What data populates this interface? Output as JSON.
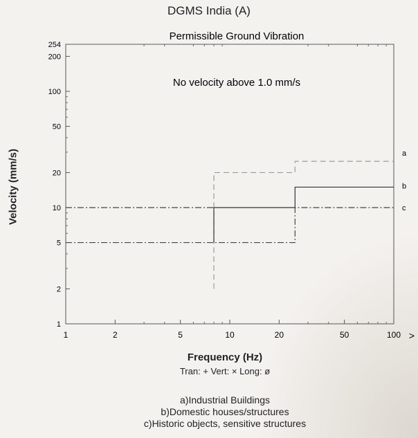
{
  "header": {
    "title": "DGMS India (A)"
  },
  "chart_data": {
    "type": "line",
    "title": "Permissible Ground Vibration",
    "annotation": "No velocity above 1.0 mm/s",
    "xlabel": "Frequency (Hz)",
    "ylabel": "Velocity (mm/s)",
    "xscale": "log",
    "yscale": "log",
    "xlim": [
      1,
      100
    ],
    "ylim": [
      1,
      254
    ],
    "x_ticks": [
      1,
      2,
      5,
      10,
      20,
      50,
      100
    ],
    "x_tick_labels": [
      "1",
      "2",
      "5",
      "10",
      "20",
      "50",
      "100"
    ],
    "x_arrow": ">",
    "y_ticks": [
      1,
      2,
      5,
      10,
      20,
      50,
      100,
      200,
      254
    ],
    "y_tick_labels": [
      "1",
      "2",
      "5",
      "10",
      "20",
      "50",
      "100",
      "200",
      "254"
    ],
    "series": [
      {
        "name": "a",
        "style": "long-dash",
        "color": "#9a9a9a",
        "x": [
          8,
          8,
          25,
          25,
          100
        ],
        "y": [
          2,
          20,
          20,
          25,
          25
        ]
      },
      {
        "name": "b",
        "style": "solid",
        "color": "#333333",
        "x": [
          8,
          8,
          25,
          25,
          100
        ],
        "y": [
          5,
          10,
          10,
          15,
          15
        ]
      },
      {
        "name": "c",
        "style": "dash-dot",
        "color": "#444444",
        "x": [
          1,
          8,
          8,
          25,
          25,
          100
        ],
        "y": [
          5,
          5,
          5,
          5,
          10,
          10
        ]
      },
      {
        "name": "",
        "style": "dash-dot",
        "color": "#444444",
        "x": [
          1,
          8
        ],
        "y": [
          10,
          10
        ]
      }
    ],
    "series_end_labels": [
      "a",
      "b",
      "c"
    ],
    "marker_line": "Tran: +  Vert: ×  Long: ø",
    "legend": [
      "a)Industrial Buildings",
      "b)Domestic houses/structures",
      "c)Historic objects, sensitive structures"
    ],
    "grid": false
  }
}
